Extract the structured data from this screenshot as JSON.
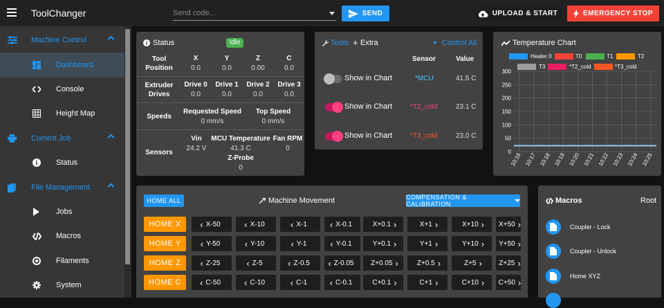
{
  "app": {
    "title": "ToolChanger"
  },
  "topbar": {
    "send_placeholder": "Send code...",
    "send_label": "SEND",
    "upload_label": "UPLOAD & START",
    "estop_label": "EMERGENCY STOP"
  },
  "sidebar": {
    "groups": [
      {
        "label": "Machine Control",
        "icon": "tune-icon",
        "items": [
          "Dashboard",
          "Console",
          "Height Map"
        ]
      },
      {
        "label": "Current Job",
        "icon": "printer-icon",
        "items": [
          "Status"
        ]
      },
      {
        "label": "File Management",
        "icon": "folder-icon",
        "items": [
          "Jobs",
          "Macros",
          "Filaments",
          "System"
        ]
      }
    ],
    "active_item": "Dashboard"
  },
  "status": {
    "title": "Status",
    "state": "Idle",
    "tool_position_label": "Tool Position",
    "axes": [
      {
        "name": "X",
        "value": "0.0"
      },
      {
        "name": "Y",
        "value": "0.0"
      },
      {
        "name": "Z",
        "value": "0.00"
      },
      {
        "name": "C",
        "value": "0.0"
      }
    ],
    "extruder_label": "Extruder Drives",
    "drives": [
      {
        "name": "Drive 0",
        "value": "0.0"
      },
      {
        "name": "Drive 1",
        "value": "0.0"
      },
      {
        "name": "Drive 2",
        "value": "0.0"
      },
      {
        "name": "Drive 3",
        "value": "0.0"
      }
    ],
    "speeds_label": "Speeds",
    "requested_speed_label": "Requested Speed",
    "requested_speed_value": "0 mm/s",
    "top_speed_label": "Top Speed",
    "top_speed_value": "0 mm/s",
    "sensors_label": "Sensors",
    "vin_label": "Vin",
    "vin_value": "24.2 V",
    "mcu_temp_label": "MCU Temperature",
    "mcu_temp_value": "41.3 C",
    "fan_label": "Fan RPM",
    "fan_value": "0",
    "zprobe_label": "Z-Probe",
    "zprobe_value": "0"
  },
  "tools": {
    "tab_tools": "Tools",
    "tab_extra": "Extra",
    "control_all": "Control All",
    "col_sensor": "Sensor",
    "col_value": "Value",
    "rows": [
      {
        "toggle_label": "Show in Chart",
        "enabled": false,
        "sensor": "*MCU",
        "sensor_color": "#4fc3f7",
        "value": "41.5 C"
      },
      {
        "toggle_label": "Show in Chart",
        "enabled": true,
        "sensor": "*T2_cold",
        "sensor_color": "#ff4081",
        "value": "23.1 C"
      },
      {
        "toggle_label": "Show in Chart",
        "enabled": true,
        "sensor": "*T3_cold",
        "sensor_color": "#ff5722",
        "value": "23.0 C"
      }
    ]
  },
  "temperature_chart": {
    "title": "Temperature Chart",
    "legend": [
      {
        "name": "Heater 0",
        "color": "#2196f3"
      },
      {
        "name": "T0",
        "color": "#f44336"
      },
      {
        "name": "T1",
        "color": "#4caf50"
      },
      {
        "name": "T2",
        "color": "#ff9800"
      },
      {
        "name": "T3",
        "color": "#9e9e9e"
      },
      {
        "name": "*T2_cold",
        "color": "#e91e63"
      },
      {
        "name": "*T3_cold",
        "color": "#ff5722"
      }
    ]
  },
  "chart_data": {
    "type": "line",
    "title": "Temperature Chart",
    "x": [
      "10:16",
      "10:17",
      "10:18",
      "10:19",
      "10:20",
      "10:21",
      "10:22",
      "10:23",
      "10:24",
      "10:25"
    ],
    "yticks": [
      0,
      50,
      100,
      150,
      200,
      250,
      300
    ],
    "ylim": [
      0,
      300
    ],
    "grid": true,
    "series": [
      {
        "name": "Heater 0",
        "color": "#90caf9",
        "values": [
          22,
          22,
          22,
          22,
          22,
          22,
          22,
          22,
          22,
          22
        ]
      }
    ]
  },
  "movement": {
    "home_all": "HOME ALL",
    "title": "Machine Movement",
    "compensation": "COMPENSATION & CALIBRATION",
    "rows": [
      {
        "home": "HOME X",
        "steps": [
          "X-50",
          "X-10",
          "X-1",
          "X-0.1",
          "X+0.1",
          "X+1",
          "X+10",
          "X+50"
        ]
      },
      {
        "home": "HOME Y",
        "steps": [
          "Y-50",
          "Y-10",
          "Y-1",
          "Y-0.1",
          "Y+0.1",
          "Y+1",
          "Y+10",
          "Y+50"
        ]
      },
      {
        "home": "HOME Z",
        "steps": [
          "Z-25",
          "Z-5",
          "Z-0.5",
          "Z-0.05",
          "Z+0.05",
          "Z+0.5",
          "Z+5",
          "Z+25"
        ]
      },
      {
        "home": "HOME C",
        "steps": [
          "C-50",
          "C-10",
          "C-1",
          "C-0.1",
          "C+0.1",
          "C+1",
          "C+10",
          "C+50"
        ]
      }
    ]
  },
  "macros": {
    "title": "Macros",
    "root": "Root",
    "items": [
      "Coupler - Lock",
      "Coupler - Unlock",
      "Home XYZ"
    ]
  }
}
